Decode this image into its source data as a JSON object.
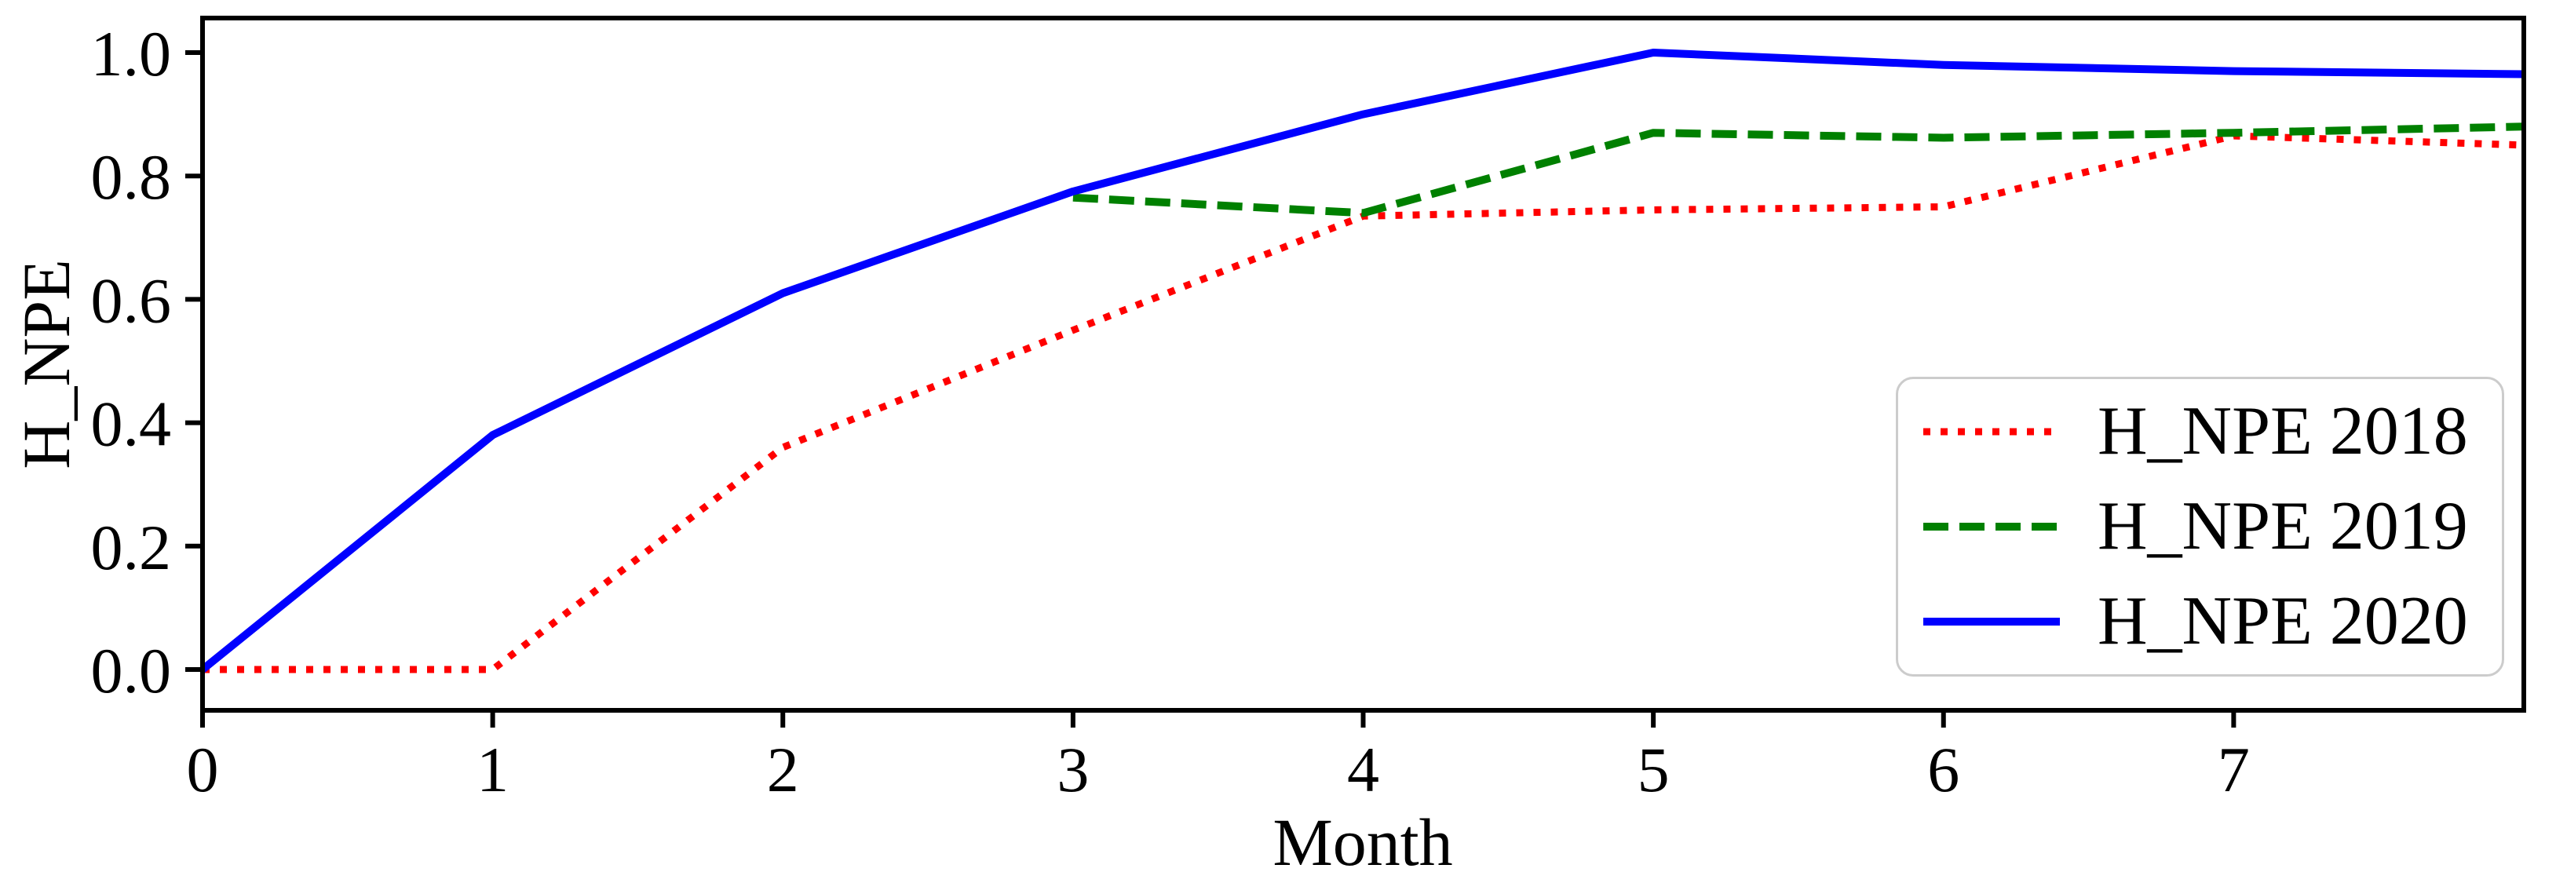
{
  "chart_data": {
    "type": "line",
    "title": "",
    "xlabel": "Month",
    "ylabel": "H_NPE",
    "xlim": [
      0,
      8
    ],
    "ylim": [
      -0.066,
      1.056
    ],
    "x_ticks": [
      "0",
      "1",
      "2",
      "3",
      "4",
      "5",
      "6",
      "7"
    ],
    "y_ticks": [
      "0.0",
      "0.2",
      "0.4",
      "0.6",
      "0.8",
      "1.0"
    ],
    "grid": false,
    "frame_color": "#000000",
    "legend": {
      "position": "lower right",
      "border_color": "#cccccc"
    },
    "series": [
      {
        "name": "H_NPE 2018",
        "color": "#ff0000",
        "line_style": "dotted",
        "x": [
          0,
          1,
          2,
          3,
          4,
          5,
          6,
          7,
          8
        ],
        "y": [
          0.0,
          0.0,
          0.36,
          0.55,
          0.735,
          0.745,
          0.75,
          0.865,
          0.85
        ]
      },
      {
        "name": "H_NPE 2019",
        "color": "#008000",
        "line_style": "dashed",
        "x": [
          3,
          4,
          5,
          6,
          7,
          8
        ],
        "y": [
          0.765,
          0.74,
          0.87,
          0.862,
          0.87,
          0.88
        ]
      },
      {
        "name": "H_NPE 2020",
        "color": "#0000ff",
        "line_style": "solid",
        "x": [
          0,
          1,
          2,
          3,
          4,
          5,
          6,
          7,
          8
        ],
        "y": [
          0.0,
          0.38,
          0.61,
          0.775,
          0.9,
          1.0,
          0.98,
          0.97,
          0.965
        ]
      }
    ]
  }
}
